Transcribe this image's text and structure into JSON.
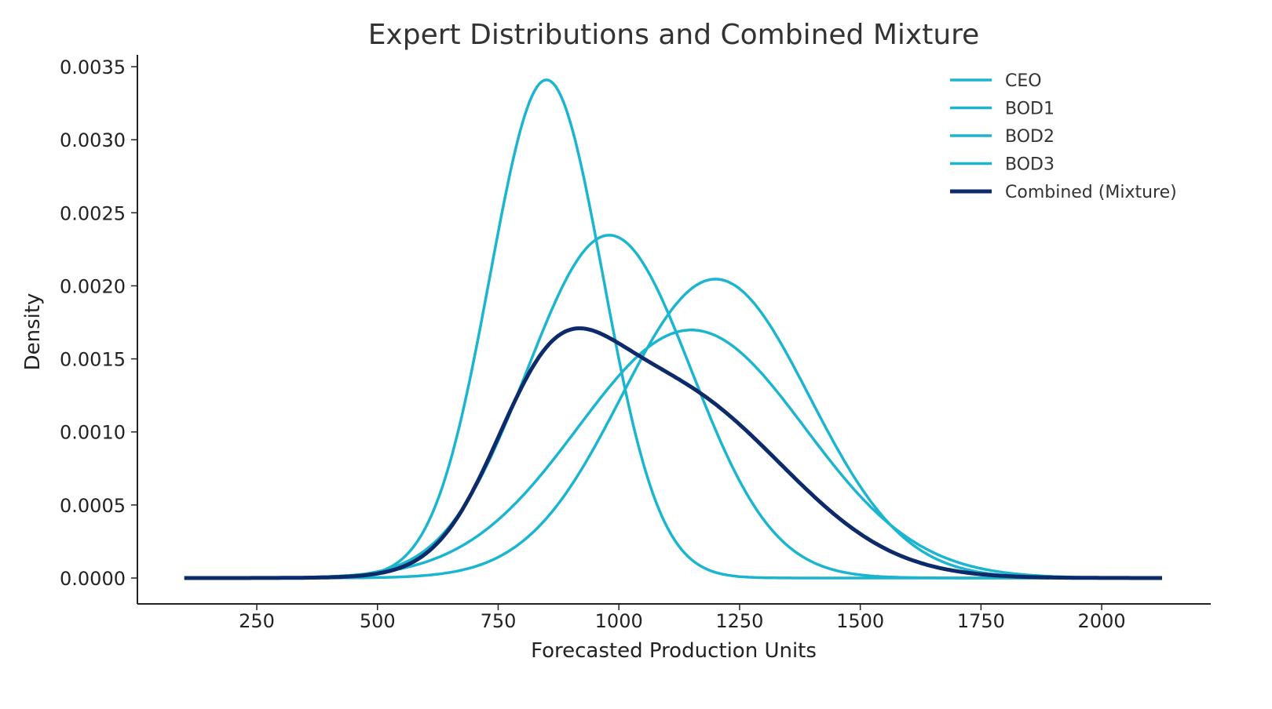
{
  "chart_data": {
    "type": "line",
    "title": "Expert Distributions and Combined Mixture",
    "xlabel": "Forecasted Production Units",
    "ylabel": "Density",
    "xlim": [
      100,
      2125
    ],
    "ylim": [
      0,
      0.0035
    ],
    "x_ticks": [
      250,
      500,
      750,
      1000,
      1250,
      1500,
      1750,
      2000
    ],
    "y_ticks": [
      "0.0000",
      "0.0005",
      "0.0010",
      "0.0015",
      "0.0020",
      "0.0025",
      "0.0030",
      "0.0035"
    ],
    "grid": false,
    "legend_position": "top-right",
    "series": [
      {
        "name": "CEO",
        "distribution": "normal",
        "mean": 850,
        "sd": 117,
        "color": "#1bb5cf"
      },
      {
        "name": "BOD1",
        "distribution": "normal",
        "mean": 980,
        "sd": 170,
        "color": "#1bb5cf"
      },
      {
        "name": "BOD2",
        "distribution": "normal",
        "mean": 1200,
        "sd": 195,
        "color": "#1bb5cf"
      },
      {
        "name": "BOD3",
        "distribution": "normal",
        "mean": 1150,
        "sd": 235,
        "color": "#1bb5cf"
      },
      {
        "name": "Combined (Mixture)",
        "distribution": "equal-weight mixture of the above",
        "color": "#0d2a6b"
      }
    ]
  }
}
